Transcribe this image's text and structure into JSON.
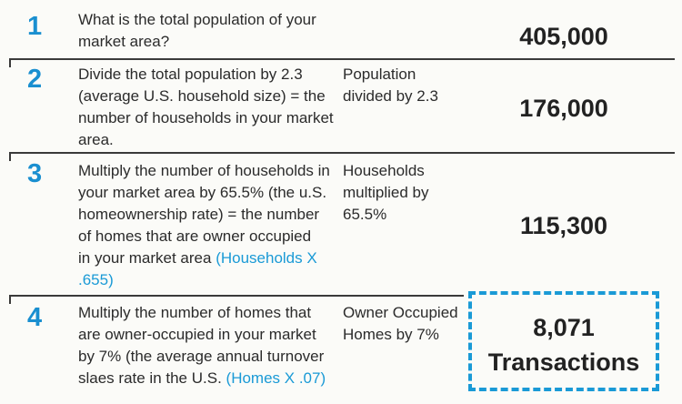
{
  "rows": [
    {
      "number": "1",
      "description": [
        "What is the total population of your",
        "market area?"
      ],
      "reference": "",
      "middle": [],
      "value": "405,000"
    },
    {
      "number": "2",
      "description": [
        "Divide the total population by 2.3",
        "(average U.S. household size) = the",
        "number of households in your market",
        "area."
      ],
      "reference": "",
      "middle": [
        "Population",
        "divided by 2.3"
      ],
      "value": "176,000"
    },
    {
      "number": "3",
      "description": [
        "Multiply the number of households in",
        "your market area by 65.5% (the u.S.",
        "homeownership rate) = the number",
        "of homes that are owner occupied",
        "in your market area "
      ],
      "reference": [
        "(Households X",
        ".655)"
      ],
      "middle": [
        "Households",
        "multiplied by",
        "65.5%"
      ],
      "value": "115,300"
    },
    {
      "number": "4",
      "description": [
        "Multiply the number of homes that",
        "are owner-occupied in your market",
        "by 7% (the average annual turnover",
        "slaes rate in the U.S. "
      ],
      "reference": "(Homes X .07)",
      "middle": [
        "Owner Occupied",
        "Homes by 7%"
      ],
      "value_lines": [
        "8,071",
        "Transactions"
      ]
    }
  ]
}
